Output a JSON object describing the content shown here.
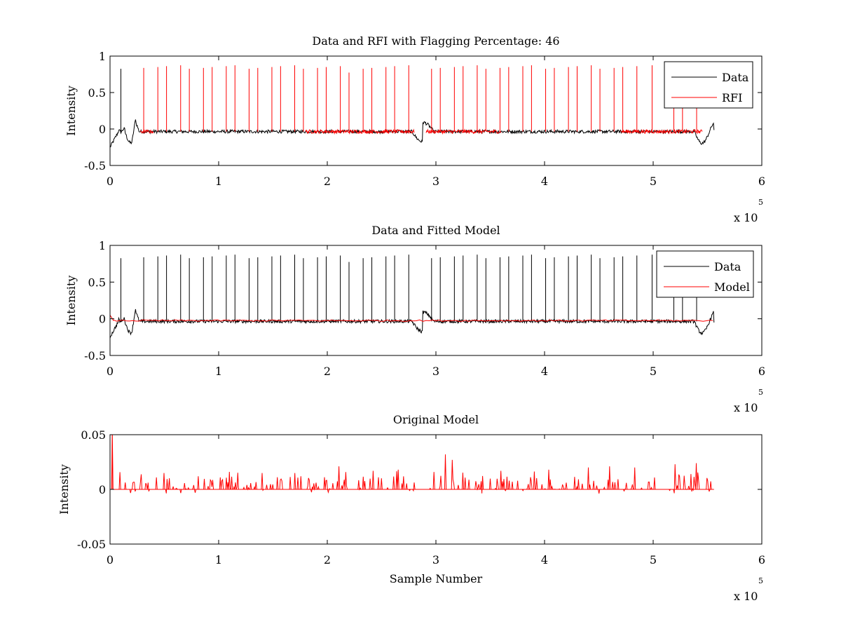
{
  "chart_data": [
    {
      "type": "line",
      "title": "Data and RFI with Flagging Percentage: 46",
      "ylabel": "Intensity",
      "xlabel": "",
      "xlim": [
        0,
        600000
      ],
      "ylim": [
        -0.5,
        1
      ],
      "x_ticks": [
        "0",
        "1",
        "2",
        "3",
        "4",
        "5",
        "6"
      ],
      "y_ticks": [
        "-0.5",
        "0",
        "0.5",
        "1"
      ],
      "x_exponent": "x 10",
      "x_exponent_power": "5",
      "legend": {
        "position": "top-right",
        "entries": [
          "Data",
          "RFI"
        ]
      },
      "grid": false,
      "series": [
        {
          "name": "Data",
          "color": "#000000"
        },
        {
          "name": "RFI",
          "color": "#ff0000"
        }
      ],
      "spike_positions": [
        10000,
        31000,
        44000,
        52000,
        65000,
        73000,
        86000,
        94000,
        107000,
        115000,
        128000,
        136000,
        149000,
        157000,
        170000,
        178000,
        191000,
        199000,
        212000,
        220000,
        233000,
        241000,
        254000,
        262000,
        275000,
        296000,
        304000,
        317000,
        325000,
        338000,
        346000,
        359000,
        367000,
        380000,
        388000,
        401000,
        409000,
        422000,
        430000,
        443000,
        451000,
        464000,
        472000,
        485000,
        499000,
        519000,
        527000,
        540000
      ],
      "spike_height_approx": 0.85,
      "baseline_approx": -0.03,
      "x_max_data": 556000
    },
    {
      "type": "line",
      "title": "Data and Fitted Model",
      "ylabel": "Intensity",
      "xlabel": "",
      "xlim": [
        0,
        600000
      ],
      "ylim": [
        -0.5,
        1
      ],
      "x_ticks": [
        "0",
        "1",
        "2",
        "3",
        "4",
        "5",
        "6"
      ],
      "y_ticks": [
        "-0.5",
        "0",
        "0.5",
        "1"
      ],
      "x_exponent": "x 10",
      "x_exponent_power": "5",
      "legend": {
        "position": "top-right",
        "entries": [
          "Data",
          "Model"
        ]
      },
      "grid": false,
      "series": [
        {
          "name": "Data",
          "color": "#000000"
        },
        {
          "name": "Model",
          "color": "#ff0000"
        }
      ]
    },
    {
      "type": "line",
      "title": "Original Model",
      "ylabel": "Intensity",
      "xlabel": "Sample Number",
      "xlim": [
        0,
        600000
      ],
      "ylim": [
        -0.05,
        0.05
      ],
      "x_ticks": [
        "0",
        "1",
        "2",
        "3",
        "4",
        "5",
        "6"
      ],
      "y_ticks": [
        "-0.05",
        "0",
        "0.05"
      ],
      "x_exponent": "x 10",
      "x_exponent_power": "5",
      "grid": false,
      "series": [
        {
          "color": "#ff0000"
        }
      ],
      "spike_peaks_approx": [
        [
          2000,
          0.05
        ],
        [
          50000,
          0.015
        ],
        [
          110000,
          0.016
        ],
        [
          140000,
          0.015
        ],
        [
          170000,
          0.015
        ],
        [
          211000,
          0.021
        ],
        [
          242000,
          0.017
        ],
        [
          265000,
          0.018
        ],
        [
          309000,
          0.032
        ],
        [
          315000,
          0.027
        ],
        [
          360000,
          0.017
        ],
        [
          404000,
          0.018
        ],
        [
          440000,
          0.02
        ],
        [
          460000,
          0.021
        ],
        [
          483000,
          0.02
        ],
        [
          520000,
          0.023
        ],
        [
          540000,
          0.024
        ]
      ]
    }
  ]
}
